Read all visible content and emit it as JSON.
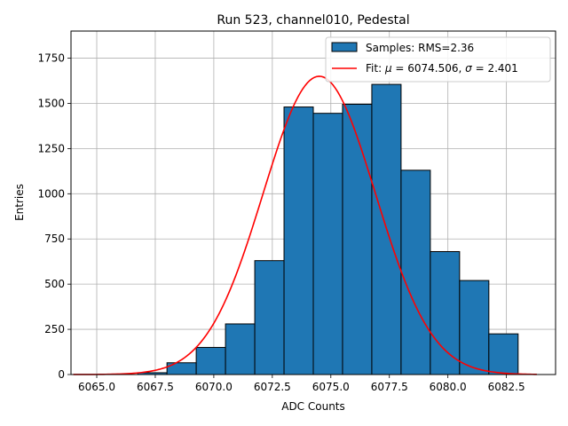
{
  "chart_data": {
    "type": "bar",
    "title": "Run 523, channel010, Pedestal",
    "xlabel": "ADC Counts",
    "ylabel": "Entries",
    "xlim": [
      6063.9,
      6084.6
    ],
    "ylim": [
      0,
      1900
    ],
    "xticks": [
      6065.0,
      6067.5,
      6070.0,
      6072.5,
      6075.0,
      6077.5,
      6080.0,
      6082.5
    ],
    "xtick_labels": [
      "6065.0",
      "6067.5",
      "6070.0",
      "6072.5",
      "6075.0",
      "6077.5",
      "6080.0",
      "6082.5"
    ],
    "yticks": [
      0,
      250,
      500,
      750,
      1000,
      1250,
      1500,
      1750
    ],
    "ytick_labels": [
      "0",
      "250",
      "500",
      "750",
      "1000",
      "1250",
      "1500",
      "1750"
    ],
    "grid": true,
    "legend_position": "top-right",
    "bin_width": 1.25,
    "bin_edges": [
      6066.75,
      6068.0,
      6069.25,
      6070.5,
      6071.75,
      6073.0,
      6074.25,
      6075.5,
      6076.75,
      6078.0,
      6079.25,
      6080.5,
      6081.75
    ],
    "histogram": {
      "name": "Samples: RMS=2.36",
      "bins": [
        {
          "x0": 6066.75,
          "x1": 6068.0,
          "value": 10
        },
        {
          "x0": 6068.0,
          "x1": 6069.25,
          "value": 65
        },
        {
          "x0": 6069.25,
          "x1": 6070.5,
          "value": 150
        },
        {
          "x0": 6070.5,
          "x1": 6071.75,
          "value": 280
        },
        {
          "x0": 6071.75,
          "x1": 6073.0,
          "value": 630
        },
        {
          "x0": 6073.0,
          "x1": 6074.25,
          "value": 1480
        },
        {
          "x0": 6074.25,
          "x1": 6075.5,
          "value": 1445
        },
        {
          "x0": 6075.5,
          "x1": 6076.75,
          "value": 1495
        },
        {
          "x0": 6076.75,
          "x1": 6078.0,
          "value": 1605
        },
        {
          "x0": 6078.0,
          "x1": 6079.25,
          "value": 1130
        },
        {
          "x0": 6079.25,
          "x1": 6080.5,
          "value": 680
        },
        {
          "x0": 6080.5,
          "x1": 6081.75,
          "value": 520
        },
        {
          "x0": 6081.75,
          "x1": 6083.0,
          "value": 225
        }
      ]
    },
    "fit": {
      "name_prefix": "Fit: ",
      "name_mu": "μ",
      "name_mid": " = 6074.506, ",
      "name_sigma": "σ",
      "name_suffix": " = 2.401",
      "mu": 6074.506,
      "sigma": 2.401,
      "amplitude": 1650,
      "x_range": [
        6064.0,
        6083.8
      ],
      "color": "#ff0000"
    },
    "colors": {
      "bar_fill": "#1f77b4",
      "bar_edge": "#000000",
      "grid": "#b0b0b0",
      "fit": "#ff0000"
    }
  }
}
